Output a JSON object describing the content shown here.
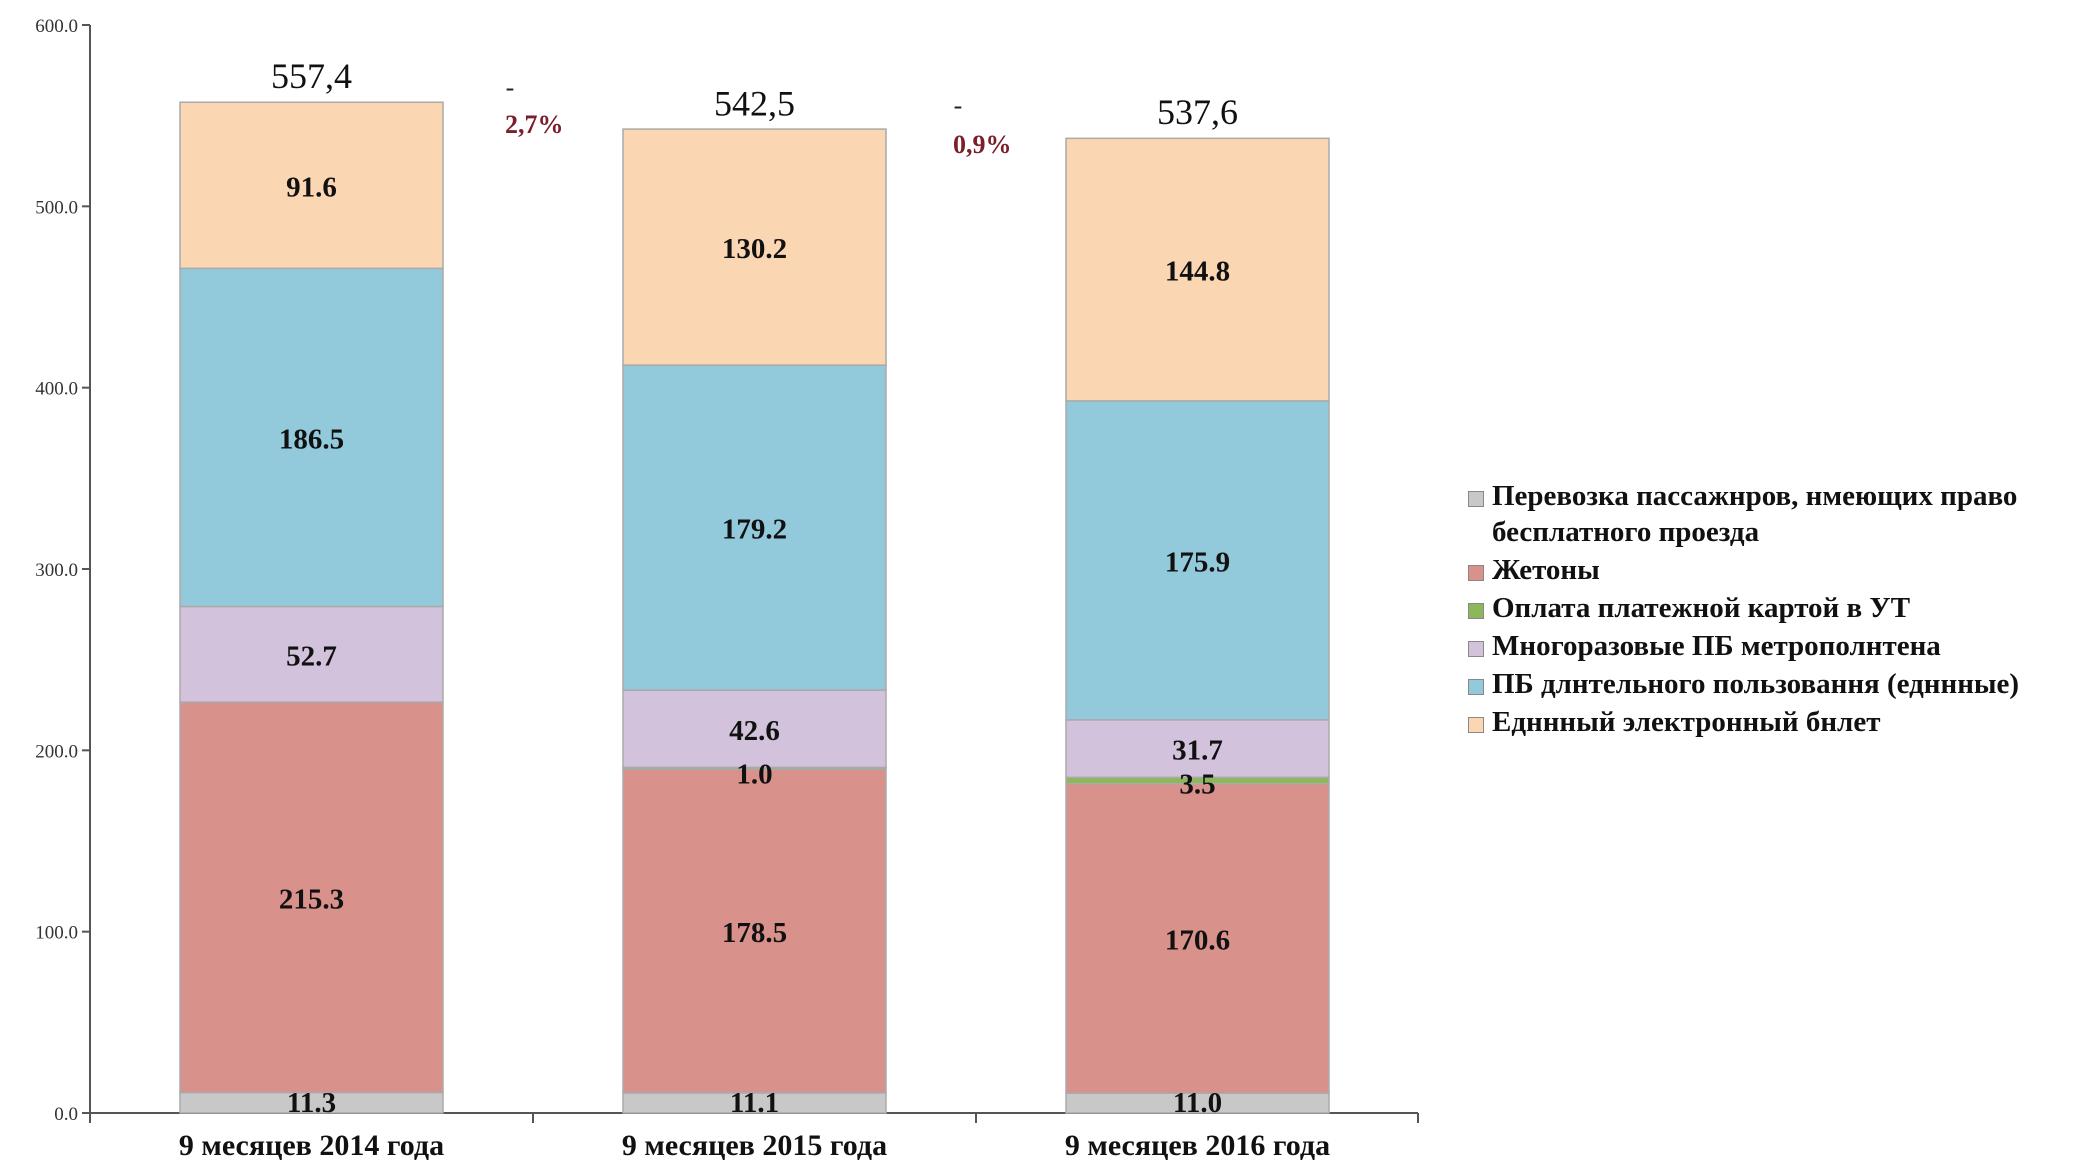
{
  "colors": {
    "free_pass": "#c8c8c8",
    "tokens": "#d9918c",
    "card_payment": "#8db85a",
    "metro_reusable": "#d2c2dc",
    "long_term": "#92cadb",
    "single_ticket": "#fbd6b2",
    "change": "#7a1f2b"
  },
  "chart_data": {
    "type": "bar",
    "stacked": true,
    "categories": [
      "9 месяцев 2014 года",
      "9 месяцев 2015 года",
      "9 месяцев 2016 года"
    ],
    "ylim": [
      0,
      600
    ],
    "yticks": [
      {
        "value": 0,
        "label": "0.0"
      },
      {
        "value": 100,
        "label": "100.0"
      },
      {
        "value": 200,
        "label": "200.0"
      },
      {
        "value": 300,
        "label": "300.0"
      },
      {
        "value": 400,
        "label": "400.0"
      },
      {
        "value": 500,
        "label": "500.0"
      },
      {
        "value": 600,
        "label": "600.0"
      }
    ],
    "grid": false,
    "legend_position": "right",
    "series": [
      {
        "key": "free_pass",
        "name": "Перевозка пассажнров, нмеющих право бесплатного проезда",
        "values": [
          11.3,
          11.1,
          11.0
        ],
        "labels": [
          "11.3",
          "11.1",
          "11.0"
        ]
      },
      {
        "key": "tokens",
        "name": "Жетоны",
        "values": [
          215.3,
          178.5,
          170.6
        ],
        "labels": [
          "215.3",
          "178.5",
          "170.6"
        ]
      },
      {
        "key": "card_payment",
        "name": "Оплата платежной картой в УТ",
        "values": [
          0,
          1.0,
          3.5
        ],
        "labels": [
          "",
          "1.0",
          "3.5"
        ]
      },
      {
        "key": "metro_reusable",
        "name": "Многоразовые ПБ метрополнтена",
        "values": [
          52.7,
          42.6,
          31.7
        ],
        "labels": [
          "52.7",
          "42.6",
          "31.7"
        ]
      },
      {
        "key": "long_term",
        "name": "ПБ длнтельного пользовання (едннные)",
        "values": [
          186.5,
          179.2,
          175.9
        ],
        "labels": [
          "186.5",
          "179.2",
          "175.9"
        ]
      },
      {
        "key": "single_ticket",
        "name": "Едннный электронный бнлет",
        "values": [
          91.6,
          130.2,
          144.8
        ],
        "labels": [
          "91.6",
          "130.2",
          "144.8"
        ]
      }
    ],
    "totals": [
      {
        "value": 557.4,
        "label": "557,4"
      },
      {
        "value": 542.5,
        "label": "542,5"
      },
      {
        "value": 537.6,
        "label": "537,6"
      }
    ],
    "changes": [
      {
        "dash": "-",
        "label": "2,7%"
      },
      {
        "dash": "-",
        "label": "0,9%"
      }
    ]
  }
}
